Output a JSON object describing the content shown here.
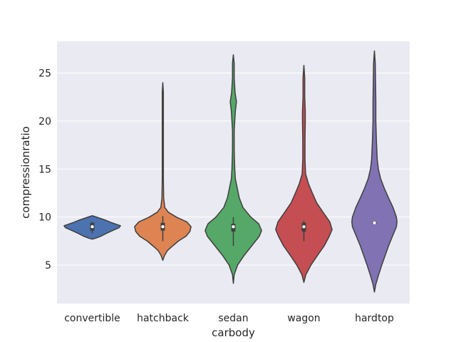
{
  "chart_data": {
    "type": "violin",
    "xlabel": "carbody",
    "ylabel": "compressionratio",
    "ylim": [
      1,
      28.3
    ],
    "yticks": [
      5,
      10,
      15,
      20,
      25
    ],
    "grid": true,
    "background": "#eaeaf2",
    "categories": [
      "convertible",
      "hatchback",
      "sedan",
      "wagon",
      "hardtop"
    ],
    "violins": [
      {
        "category": "convertible",
        "color": "#4c72b0",
        "median": 9.0,
        "q1": 8.6,
        "q3": 9.4,
        "whisker_low": 8.3,
        "whisker_high": 9.5,
        "density": [
          [
            7.7,
            0.0
          ],
          [
            7.8,
            0.12
          ],
          [
            8.0,
            0.3
          ],
          [
            8.3,
            0.5
          ],
          [
            8.6,
            0.72
          ],
          [
            8.9,
            0.95
          ],
          [
            9.1,
            1.0
          ],
          [
            9.4,
            0.7
          ],
          [
            9.7,
            0.45
          ],
          [
            9.95,
            0.2
          ],
          [
            10.15,
            0.0
          ]
        ]
      },
      {
        "category": "hatchback",
        "color": "#dd8452",
        "median": 9.0,
        "q1": 8.6,
        "q3": 9.4,
        "whisker_low": 7.5,
        "whisker_high": 10.1,
        "density": [
          [
            5.5,
            0.0
          ],
          [
            6.0,
            0.06
          ],
          [
            6.5,
            0.16
          ],
          [
            7.0,
            0.35
          ],
          [
            7.5,
            0.55
          ],
          [
            8.0,
            0.82
          ],
          [
            8.5,
            0.96
          ],
          [
            9.0,
            1.0
          ],
          [
            9.5,
            0.85
          ],
          [
            10.0,
            0.48
          ],
          [
            10.5,
            0.2
          ],
          [
            11.0,
            0.07
          ],
          [
            12.0,
            0.03
          ],
          [
            14.0,
            0.02
          ],
          [
            18.0,
            0.02
          ],
          [
            21.0,
            0.02
          ],
          [
            23.0,
            0.02
          ],
          [
            24.0,
            0.0
          ]
        ]
      },
      {
        "category": "sedan",
        "color": "#55a868",
        "median": 9.0,
        "q1": 8.5,
        "q3": 9.3,
        "whisker_low": 7.0,
        "whisker_high": 10.0,
        "density": [
          [
            3.1,
            0.0
          ],
          [
            4.0,
            0.03
          ],
          [
            5.0,
            0.15
          ],
          [
            6.0,
            0.38
          ],
          [
            7.0,
            0.65
          ],
          [
            8.0,
            0.92
          ],
          [
            8.6,
            1.0
          ],
          [
            9.3,
            0.9
          ],
          [
            10.0,
            0.62
          ],
          [
            11.0,
            0.34
          ],
          [
            12.0,
            0.21
          ],
          [
            13.0,
            0.14
          ],
          [
            14.0,
            0.07
          ],
          [
            15.0,
            0.05
          ],
          [
            17.0,
            0.03
          ],
          [
            19.0,
            0.03
          ],
          [
            21.0,
            0.07
          ],
          [
            22.0,
            0.11
          ],
          [
            23.0,
            0.06
          ],
          [
            24.5,
            0.03
          ],
          [
            26.0,
            0.03
          ],
          [
            26.9,
            0.0
          ]
        ]
      },
      {
        "category": "wagon",
        "color": "#c44e52",
        "median": 9.0,
        "q1": 8.5,
        "q3": 9.4,
        "whisker_low": 7.5,
        "whisker_high": 9.6,
        "density": [
          [
            3.2,
            0.0
          ],
          [
            4.0,
            0.07
          ],
          [
            5.0,
            0.25
          ],
          [
            6.0,
            0.48
          ],
          [
            7.0,
            0.72
          ],
          [
            8.0,
            0.9
          ],
          [
            8.7,
            1.0
          ],
          [
            9.5,
            0.92
          ],
          [
            10.5,
            0.68
          ],
          [
            11.5,
            0.45
          ],
          [
            12.5,
            0.3
          ],
          [
            13.5,
            0.16
          ],
          [
            14.5,
            0.06
          ],
          [
            16.0,
            0.04
          ],
          [
            18.0,
            0.04
          ],
          [
            20.0,
            0.05
          ],
          [
            21.0,
            0.05
          ],
          [
            22.5,
            0.03
          ],
          [
            24.5,
            0.03
          ],
          [
            25.8,
            0.0
          ]
        ]
      },
      {
        "category": "hardtop",
        "color": "#8172b3",
        "median": 9.4,
        "q1": 9.3,
        "q3": 9.5,
        "whisker_low": 9.2,
        "whisker_high": 9.6,
        "density": [
          [
            2.2,
            0.0
          ],
          [
            3.0,
            0.05
          ],
          [
            4.0,
            0.15
          ],
          [
            5.0,
            0.26
          ],
          [
            6.0,
            0.38
          ],
          [
            7.0,
            0.5
          ],
          [
            8.0,
            0.64
          ],
          [
            9.0,
            0.78
          ],
          [
            9.5,
            0.8
          ],
          [
            10.0,
            0.78
          ],
          [
            11.0,
            0.66
          ],
          [
            12.0,
            0.5
          ],
          [
            13.0,
            0.35
          ],
          [
            14.0,
            0.22
          ],
          [
            15.0,
            0.14
          ],
          [
            16.0,
            0.1
          ],
          [
            18.0,
            0.07
          ],
          [
            20.0,
            0.05
          ],
          [
            22.0,
            0.05
          ],
          [
            24.0,
            0.04
          ],
          [
            26.0,
            0.03
          ],
          [
            27.3,
            0.0
          ]
        ]
      }
    ]
  }
}
